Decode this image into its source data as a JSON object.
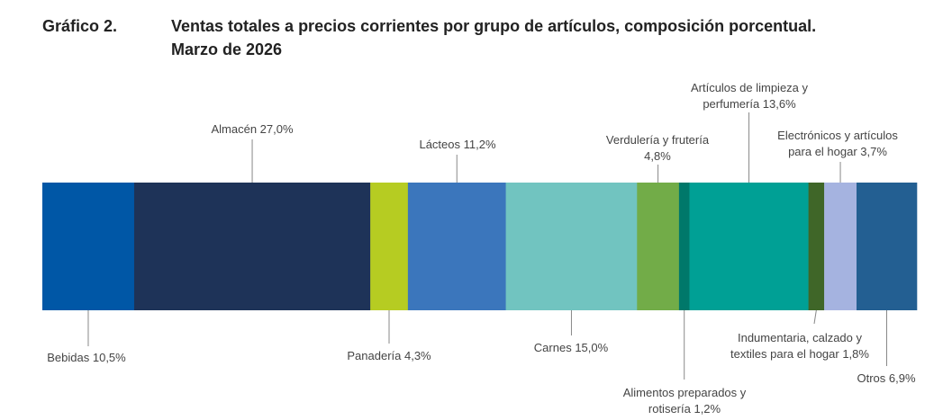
{
  "header": {
    "figure_number": "Gráfico 2.",
    "title_line1": "Ventas totales a precios corrientes por grupo de artículos, composición porcentual.",
    "title_line2": "Marzo de 2026"
  },
  "chart_data": {
    "type": "bar",
    "orientation": "horizontal-stacked-100",
    "title": "Ventas totales a precios corrientes por grupo de artículos, composición porcentual. Marzo de 2026",
    "categories": [
      "Bebidas",
      "Almacén",
      "Panadería",
      "Lácteos",
      "Carnes",
      "Verdulería y frutería",
      "Alimentos preparados y rotisería",
      "Artículos de limpieza y perfumería",
      "Indumentaria, calzado y textiles para el hogar",
      "Electrónicos y artículos para el hogar",
      "Otros"
    ],
    "values": [
      10.5,
      27.0,
      4.3,
      11.2,
      15.0,
      4.8,
      1.2,
      13.6,
      1.8,
      3.7,
      6.9
    ],
    "unit": "%",
    "colors": [
      "#0057A6",
      "#1E3358",
      "#B6CC22",
      "#3B76BC",
      "#71C4C0",
      "#72AC48",
      "#00786A",
      "#00A095",
      "#3F6628",
      "#A5B3E0",
      "#235F92"
    ],
    "segment_labels": [
      {
        "lines": [
          "Bebidas 10,5%"
        ],
        "position": "below"
      },
      {
        "lines": [
          "Almacén 27,0%"
        ],
        "position": "above"
      },
      {
        "lines": [
          "Panadería 4,3%"
        ],
        "position": "below"
      },
      {
        "lines": [
          "Lácteos 11,2%"
        ],
        "position": "above"
      },
      {
        "lines": [
          "Carnes 15,0%"
        ],
        "position": "below"
      },
      {
        "lines": [
          "Verdulería y frutería",
          "4,8%"
        ],
        "position": "above"
      },
      {
        "lines": [
          "Alimentos preparados y",
          "rotisería 1,2%"
        ],
        "position": "below"
      },
      {
        "lines": [
          "Artículos de limpieza y",
          "perfumería 13,6%"
        ],
        "position": "above"
      },
      {
        "lines": [
          "Indumentaria, calzado y",
          "textiles para el hogar 1,8%"
        ],
        "position": "below"
      },
      {
        "lines": [
          "Electrónicos y artículos",
          "para el hogar 3,7%"
        ],
        "position": "above"
      },
      {
        "lines": [
          "Otros 6,9%"
        ],
        "position": "below"
      }
    ],
    "legend": "none",
    "grid": false
  }
}
